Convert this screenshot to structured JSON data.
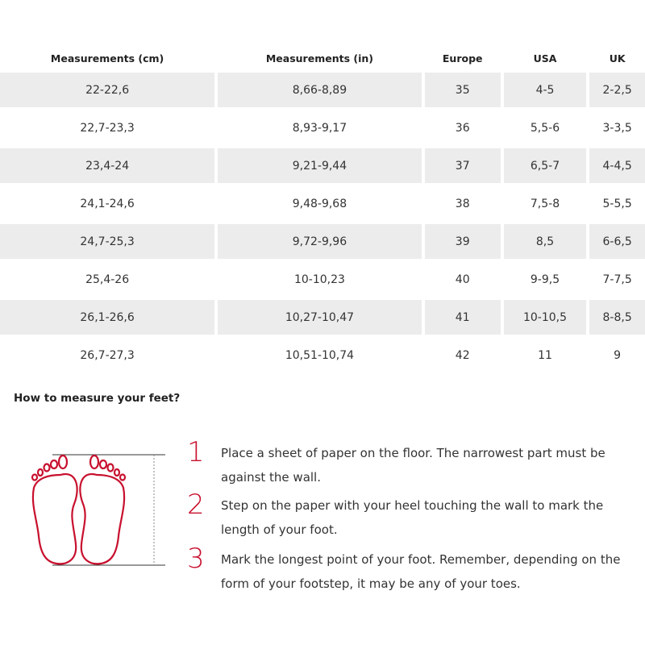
{
  "table": {
    "headers": [
      "Measurements (cm)",
      "Measurements (in)",
      "Europe",
      "USA",
      "UK"
    ],
    "rows": [
      [
        "22-22,6",
        "8,66-8,89",
        "35",
        "4-5",
        "2-2,5"
      ],
      [
        "22,7-23,3",
        "8,93-9,17",
        "36",
        "5,5-6",
        "3-3,5"
      ],
      [
        "23,4-24",
        "9,21-9,44",
        "37",
        "6,5-7",
        "4-4,5"
      ],
      [
        "24,1-24,6",
        "9,48-9,68",
        "38",
        "7,5-8",
        "5-5,5"
      ],
      [
        "24,7-25,3",
        "9,72-9,96",
        "39",
        "8,5",
        "6-6,5"
      ],
      [
        "25,4-26",
        "10-10,23",
        "40",
        "9-9,5",
        "7-7,5"
      ],
      [
        "26,1-26,6",
        "10,27-10,47",
        "41",
        "10-10,5",
        "8-8,5"
      ],
      [
        "26,7-27,3",
        "10,51-10,74",
        "42",
        "11",
        "9"
      ]
    ]
  },
  "guide": {
    "title": "How to measure your feet?",
    "steps": [
      {
        "number": "1",
        "text": "Place a sheet of paper on the floor. The narrowest part must be against the wall."
      },
      {
        "number": "2",
        "text": "Step on the paper with your heel touching the wall to mark the length of your foot."
      },
      {
        "number": "3",
        "text": "Mark the longest point of your foot. Remember, depending on the form of your footstep, it may be any of your toes."
      }
    ],
    "illustration": "feet-outline-icon",
    "accent_color": "#c8102e",
    "row_shade_color": "#ececec"
  }
}
